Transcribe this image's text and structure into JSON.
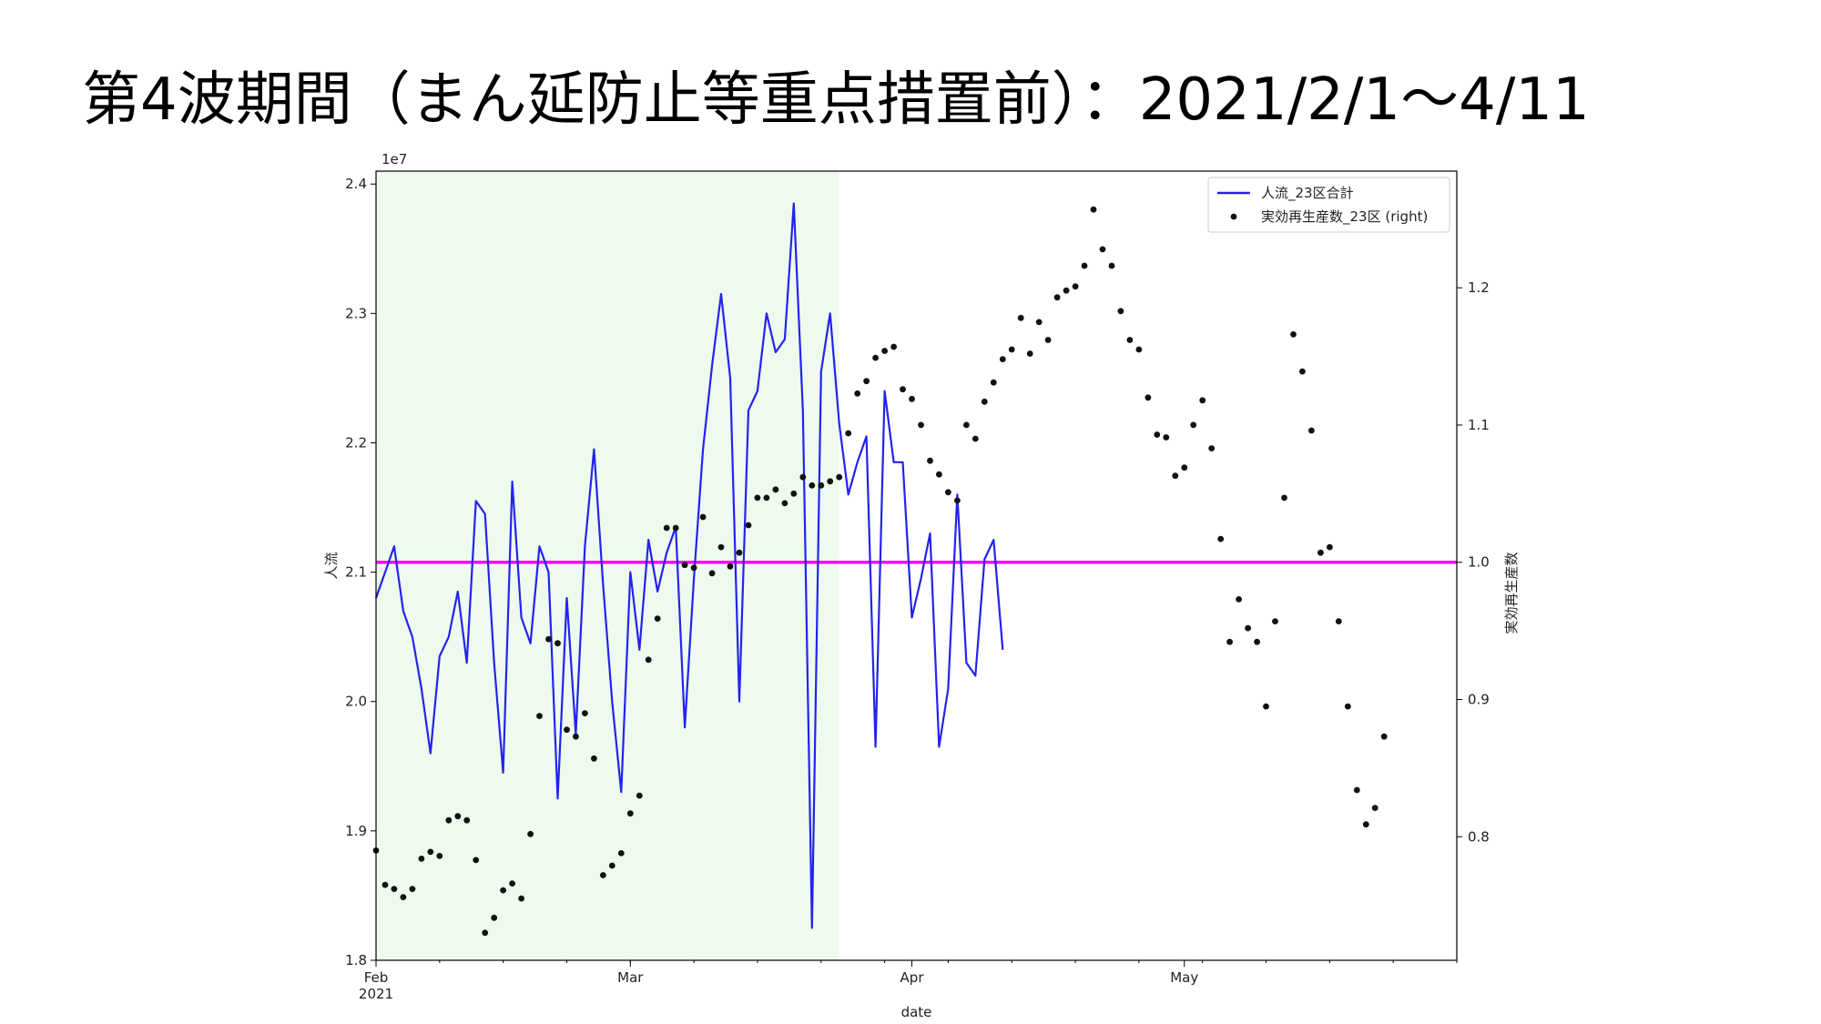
{
  "slide": {
    "title": "第4波期間（まん延防止等重点措置前）：2021/2/1〜4/11"
  },
  "chart_data": {
    "type": "line",
    "xlabel": "date",
    "ylabel_left": "人流",
    "ylabel_right": "実効再生産数",
    "left_scale_label": "1e7",
    "left_scale_exponent": 10000000,
    "x_range": [
      "2021-02-01",
      "2021-05-31"
    ],
    "ylim_left": [
      1.8,
      2.41
    ],
    "ylim_right": [
      0.71,
      1.285
    ],
    "x_ticks": [
      {
        "date": "2021-02-01",
        "label": "Feb",
        "sublabel": "2021"
      },
      {
        "date": "2021-03-01",
        "label": "Mar",
        "sublabel": ""
      },
      {
        "date": "2021-04-01",
        "label": "Apr",
        "sublabel": ""
      },
      {
        "date": "2021-05-01",
        "label": "May",
        "sublabel": ""
      }
    ],
    "y_ticks_left": [
      "1.8",
      "1.9",
      "2.0",
      "2.1",
      "2.2",
      "2.3",
      "2.4"
    ],
    "y_ticks_right": [
      "0.8",
      "0.9",
      "1.0",
      "1.1",
      "1.2"
    ],
    "highlight_period": {
      "start": "2021-02-01",
      "end": "2021-03-24",
      "color": "#eefaee"
    },
    "reference_line": {
      "axis": "right",
      "value": 1.0,
      "color": "#ff00ff"
    },
    "legend": {
      "position": "top-right"
    },
    "series": [
      {
        "name": "人流_23区合計",
        "axis": "left",
        "style": "line",
        "color": "#2323ee",
        "start": "2021-02-01",
        "values": [
          2.08,
          2.1,
          2.12,
          2.07,
          2.05,
          2.01,
          1.96,
          2.035,
          2.05,
          2.085,
          2.03,
          2.155,
          2.145,
          2.03,
          1.945,
          2.17,
          2.065,
          2.045,
          2.12,
          2.1,
          1.925,
          2.08,
          1.975,
          2.12,
          2.195,
          2.09,
          2.0,
          1.93,
          2.1,
          2.04,
          2.125,
          2.085,
          2.115,
          2.135,
          1.98,
          2.095,
          2.195,
          2.26,
          2.315,
          2.25,
          2.0,
          2.225,
          2.24,
          2.3,
          2.27,
          2.28,
          2.385,
          2.225,
          1.825,
          2.255,
          2.3,
          2.215,
          2.16,
          2.185,
          2.205,
          1.965,
          2.24,
          2.185,
          2.185,
          2.065,
          2.095,
          2.13,
          1.965,
          2.01,
          2.16,
          2.03,
          2.02,
          2.11,
          2.125,
          2.04
        ]
      },
      {
        "name": "実効再生産数_23区 (right)",
        "axis": "right",
        "style": "scatter",
        "color": "#111111",
        "start": "2021-02-01",
        "values": [
          0.79,
          0.765,
          0.762,
          0.756,
          0.762,
          0.784,
          0.789,
          0.786,
          0.812,
          0.815,
          0.812,
          0.783,
          0.73,
          0.741,
          0.761,
          0.766,
          0.755,
          0.802,
          0.888,
          0.944,
          0.941,
          0.878,
          0.873,
          0.89,
          0.857,
          0.772,
          0.779,
          0.788,
          0.817,
          0.83,
          0.929,
          0.959,
          1.025,
          1.025,
          0.998,
          0.996,
          1.033,
          0.992,
          1.011,
          0.997,
          1.007,
          1.027,
          1.047,
          1.047,
          1.053,
          1.043,
          1.05,
          1.062,
          1.056,
          1.056,
          1.059,
          1.062,
          1.094,
          1.123,
          1.132,
          1.149,
          1.154,
          1.157,
          1.126,
          1.119,
          1.1,
          1.074,
          1.064,
          1.051,
          1.045,
          1.1,
          1.09,
          1.117,
          1.131,
          1.148,
          1.155,
          1.178,
          1.152,
          1.175,
          1.162,
          1.193,
          1.198,
          1.201,
          1.216,
          1.257,
          1.228,
          1.216,
          1.183,
          1.162,
          1.155,
          1.12,
          1.093,
          1.091,
          1.063,
          1.069,
          1.1,
          1.118,
          1.083,
          1.017,
          0.942,
          0.973,
          0.952,
          0.942,
          0.895,
          0.957,
          1.047,
          1.166,
          1.139,
          1.096,
          1.007,
          1.011,
          0.957,
          0.895,
          0.834,
          0.809,
          0.821,
          0.873
        ]
      }
    ]
  }
}
